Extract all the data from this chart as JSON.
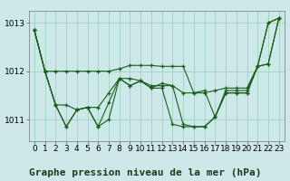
{
  "background_color": "#cce8e8",
  "grid_color": "#99ccbb",
  "line_color": "#1a5c1a",
  "title": "Graphe pression niveau de la mer (hPa)",
  "xlim": [
    -0.5,
    23.5
  ],
  "ylim": [
    1010.55,
    1013.25
  ],
  "yticks": [
    1011,
    1012,
    1013
  ],
  "xticks": [
    0,
    1,
    2,
    3,
    4,
    5,
    6,
    7,
    8,
    9,
    10,
    11,
    12,
    13,
    14,
    15,
    16,
    17,
    18,
    19,
    20,
    21,
    22,
    23
  ],
  "series": [
    [
      1012.85,
      1012.0,
      1012.0,
      1012.0,
      1012.0,
      1012.0,
      1012.0,
      1012.0,
      1012.05,
      1012.12,
      1012.12,
      1012.12,
      1012.1,
      1012.1,
      1012.1,
      1011.55,
      1011.55,
      1011.6,
      1011.65,
      1011.65,
      1011.65,
      1012.1,
      1012.15,
      1013.1
    ],
    [
      1012.85,
      1012.0,
      1011.3,
      1011.3,
      1011.2,
      1011.25,
      1011.25,
      1011.55,
      1011.85,
      1011.85,
      1011.8,
      1011.7,
      1011.7,
      1011.7,
      1011.55,
      1011.55,
      1011.6,
      1011.05,
      1011.55,
      1011.55,
      1011.55,
      1012.1,
      1012.15,
      1013.1
    ],
    [
      1012.85,
      1012.0,
      1011.3,
      1010.85,
      1011.2,
      1011.25,
      1010.85,
      1011.0,
      1011.85,
      1011.7,
      1011.8,
      1011.65,
      1011.75,
      1011.7,
      1010.9,
      1010.85,
      1010.85,
      1011.05,
      1011.55,
      1011.55,
      1011.55,
      1012.1,
      1013.0,
      1013.1
    ],
    [
      1012.85,
      1012.0,
      1011.3,
      1010.85,
      1011.2,
      1011.25,
      1010.85,
      1011.35,
      1011.85,
      1011.7,
      1011.8,
      1011.65,
      1011.65,
      1010.9,
      1010.85,
      1010.85,
      1010.85,
      1011.05,
      1011.6,
      1011.6,
      1011.6,
      1012.1,
      1013.0,
      1013.1
    ]
  ],
  "title_fontsize": 8,
  "tick_fontsize": 6.5
}
